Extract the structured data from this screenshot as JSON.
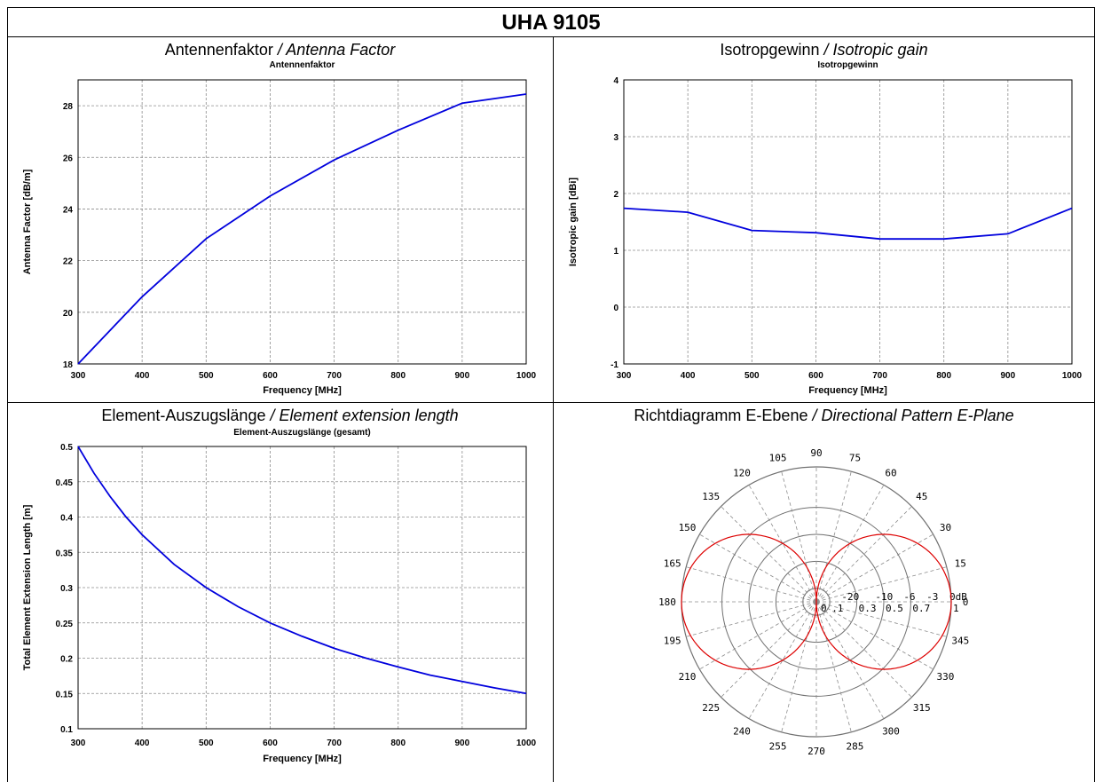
{
  "page": {
    "title": "UHA 9105"
  },
  "panels": [
    {
      "title_de": "Antennenfaktor",
      "title_en": "Antenna Factor"
    },
    {
      "title_de": "Isotropgewinn",
      "title_en": "Isotropic gain"
    },
    {
      "title_de": "Element-Auszugslänge",
      "title_en": "Element extension length"
    },
    {
      "title_de": "Richtdiagramm E-Ebene",
      "title_en": "Directional Pattern E-Plane"
    }
  ],
  "colors": {
    "series_line": "#0000dd",
    "pattern_line": "#dd0000",
    "grid": "#8c8c8c"
  },
  "chart_data": [
    {
      "type": "line",
      "title": "Antennenfaktor",
      "xlabel": "Frequency [MHz]",
      "ylabel": "Antenna Factor [dB/m]",
      "xlim": [
        300,
        1000
      ],
      "ylim": [
        18,
        29
      ],
      "xticks": [
        300,
        400,
        500,
        600,
        700,
        800,
        900,
        1000
      ],
      "yticks": [
        18,
        20,
        22,
        24,
        26,
        28
      ],
      "x": [
        300,
        400,
        500,
        600,
        700,
        800,
        900,
        1000
      ],
      "y": [
        18.0,
        20.6,
        22.85,
        24.5,
        25.9,
        27.05,
        28.1,
        28.45
      ],
      "grid": true
    },
    {
      "type": "line",
      "title": "Isotropgewinn",
      "xlabel": "Frequency [MHz]",
      "ylabel": "Isotropic gain [dBi]",
      "xlim": [
        300,
        1000
      ],
      "ylim": [
        -1,
        4
      ],
      "xticks": [
        300,
        400,
        500,
        600,
        700,
        800,
        900,
        1000
      ],
      "yticks": [
        -1,
        0,
        1,
        2,
        3,
        4
      ],
      "x": [
        300,
        400,
        500,
        600,
        700,
        800,
        900,
        1000
      ],
      "y": [
        1.74,
        1.67,
        1.35,
        1.31,
        1.2,
        1.2,
        1.29,
        1.74
      ],
      "grid": true
    },
    {
      "type": "line",
      "title": "Element-Auszugslänge (gesamt)",
      "xlabel": "Frequency [MHz]",
      "ylabel": "Total Element Extension Length [m]",
      "xlim": [
        300,
        1000
      ],
      "ylim": [
        0.1,
        0.5
      ],
      "xticks": [
        300,
        400,
        500,
        600,
        700,
        800,
        900,
        1000
      ],
      "yticks": [
        0.1,
        0.15,
        0.2,
        0.25,
        0.3,
        0.35,
        0.4,
        0.45,
        0.5
      ],
      "x": [
        300,
        325,
        350,
        375,
        400,
        450,
        500,
        550,
        600,
        650,
        700,
        750,
        800,
        850,
        900,
        950,
        1000
      ],
      "y": [
        0.5,
        0.462,
        0.429,
        0.4,
        0.375,
        0.333,
        0.3,
        0.273,
        0.25,
        0.231,
        0.214,
        0.2,
        0.1875,
        0.176,
        0.167,
        0.158,
        0.15
      ],
      "grid": true
    },
    {
      "type": "polar",
      "angle_labels": [
        "0",
        "15",
        "30",
        "45",
        "60",
        "75",
        "90",
        "105",
        "120",
        "135",
        "150",
        "165",
        "180",
        "195",
        "210",
        "225",
        "240",
        "255",
        "270",
        "285",
        "300",
        "315",
        "330",
        "345"
      ],
      "db_labels": [
        "-20",
        "-10",
        "-6",
        "-3",
        "0dB"
      ],
      "lin_labels": [
        "0",
        ".1",
        "0.3",
        "0.5",
        "0.7",
        "1"
      ],
      "rings_linear": [
        0.1,
        0.3,
        0.5,
        0.7,
        1.0
      ],
      "pattern": "cos(theta)",
      "grid": true
    }
  ]
}
